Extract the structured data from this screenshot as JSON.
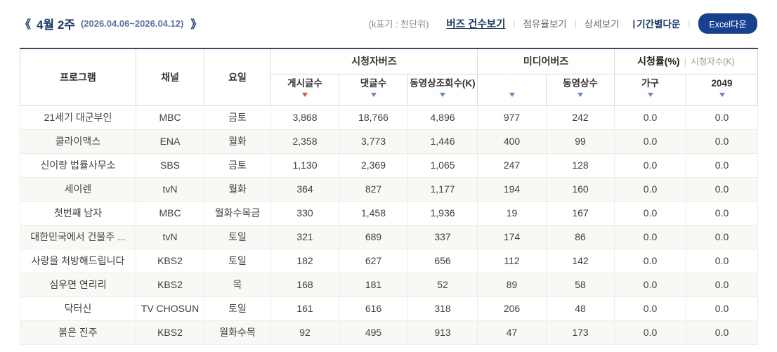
{
  "topbar": {
    "prev_arrow": "《",
    "next_arrow": "》",
    "week_title": "4월 2주",
    "week_range": "(2026.04.06~2026.04.12)",
    "unit_note": "(k표기 : 천단위)",
    "divider": "|",
    "links": [
      {
        "label": "버즈 건수보기",
        "active": true
      },
      {
        "label": "점유율보기",
        "active": false
      },
      {
        "label": "상세보기",
        "active": false
      },
      {
        "label": "기간별다운",
        "active": false,
        "bold": true
      }
    ],
    "excel_button": "Excel다운"
  },
  "table": {
    "headers": {
      "program": "프로그램",
      "channel": "채널",
      "day": "요일",
      "group_viewer_buzz": "시청자버즈",
      "group_media_buzz": "미디어버즈",
      "rating_main": "시청률(%)",
      "rating_sep": "|",
      "rating_sub": "시청자수(K)"
    },
    "sub_headers": [
      "게시글수",
      "댓글수",
      "동영상조회수(K)",
      "",
      "동영상수",
      "가구",
      "2049"
    ],
    "sort_state": [
      "desc-active",
      "desc",
      "desc",
      "desc",
      "desc",
      "desc",
      "desc"
    ],
    "rows": [
      {
        "program": "21세기 대군부인",
        "channel": "MBC",
        "day": "금토",
        "values": [
          "3,868",
          "18,766",
          "4,896",
          "977",
          "242",
          "0.0",
          "0.0"
        ]
      },
      {
        "program": "클라이맥스",
        "channel": "ENA",
        "day": "월화",
        "values": [
          "2,358",
          "3,773",
          "1,446",
          "400",
          "99",
          "0.0",
          "0.0"
        ]
      },
      {
        "program": "신이랑 법률사무소",
        "channel": "SBS",
        "day": "금토",
        "values": [
          "1,130",
          "2,369",
          "1,065",
          "247",
          "128",
          "0.0",
          "0.0"
        ]
      },
      {
        "program": "세이렌",
        "channel": "tvN",
        "day": "월화",
        "values": [
          "364",
          "827",
          "1,177",
          "194",
          "160",
          "0.0",
          "0.0"
        ]
      },
      {
        "program": "첫번째 남자",
        "channel": "MBC",
        "day": "월화수목금",
        "values": [
          "330",
          "1,458",
          "1,936",
          "19",
          "167",
          "0.0",
          "0.0"
        ]
      },
      {
        "program": "대한민국에서 건물주 ...",
        "channel": "tvN",
        "day": "토일",
        "values": [
          "321",
          "689",
          "337",
          "174",
          "86",
          "0.0",
          "0.0"
        ]
      },
      {
        "program": "사랑을 처방해드립니다",
        "channel": "KBS2",
        "day": "토일",
        "values": [
          "182",
          "627",
          "656",
          "112",
          "142",
          "0.0",
          "0.0"
        ]
      },
      {
        "program": "심우면 연리리",
        "channel": "KBS2",
        "day": "목",
        "values": [
          "168",
          "181",
          "52",
          "89",
          "58",
          "0.0",
          "0.0"
        ]
      },
      {
        "program": "닥터신",
        "channel": "TV CHOSUN",
        "day": "토일",
        "values": [
          "161",
          "616",
          "318",
          "206",
          "48",
          "0.0",
          "0.0"
        ]
      },
      {
        "program": "붉은 진주",
        "channel": "KBS2",
        "day": "월화수목",
        "values": [
          "92",
          "495",
          "913",
          "47",
          "173",
          "0.0",
          "0.0"
        ]
      }
    ]
  },
  "colors": {
    "accent_navy": "#17366e",
    "table_top_border": "#37476b",
    "excel_button_bg": "#17418f",
    "sort_active_red": "#f05030",
    "sort_blue": "#6286d8",
    "alt_row_bg": "#faf8f5"
  }
}
